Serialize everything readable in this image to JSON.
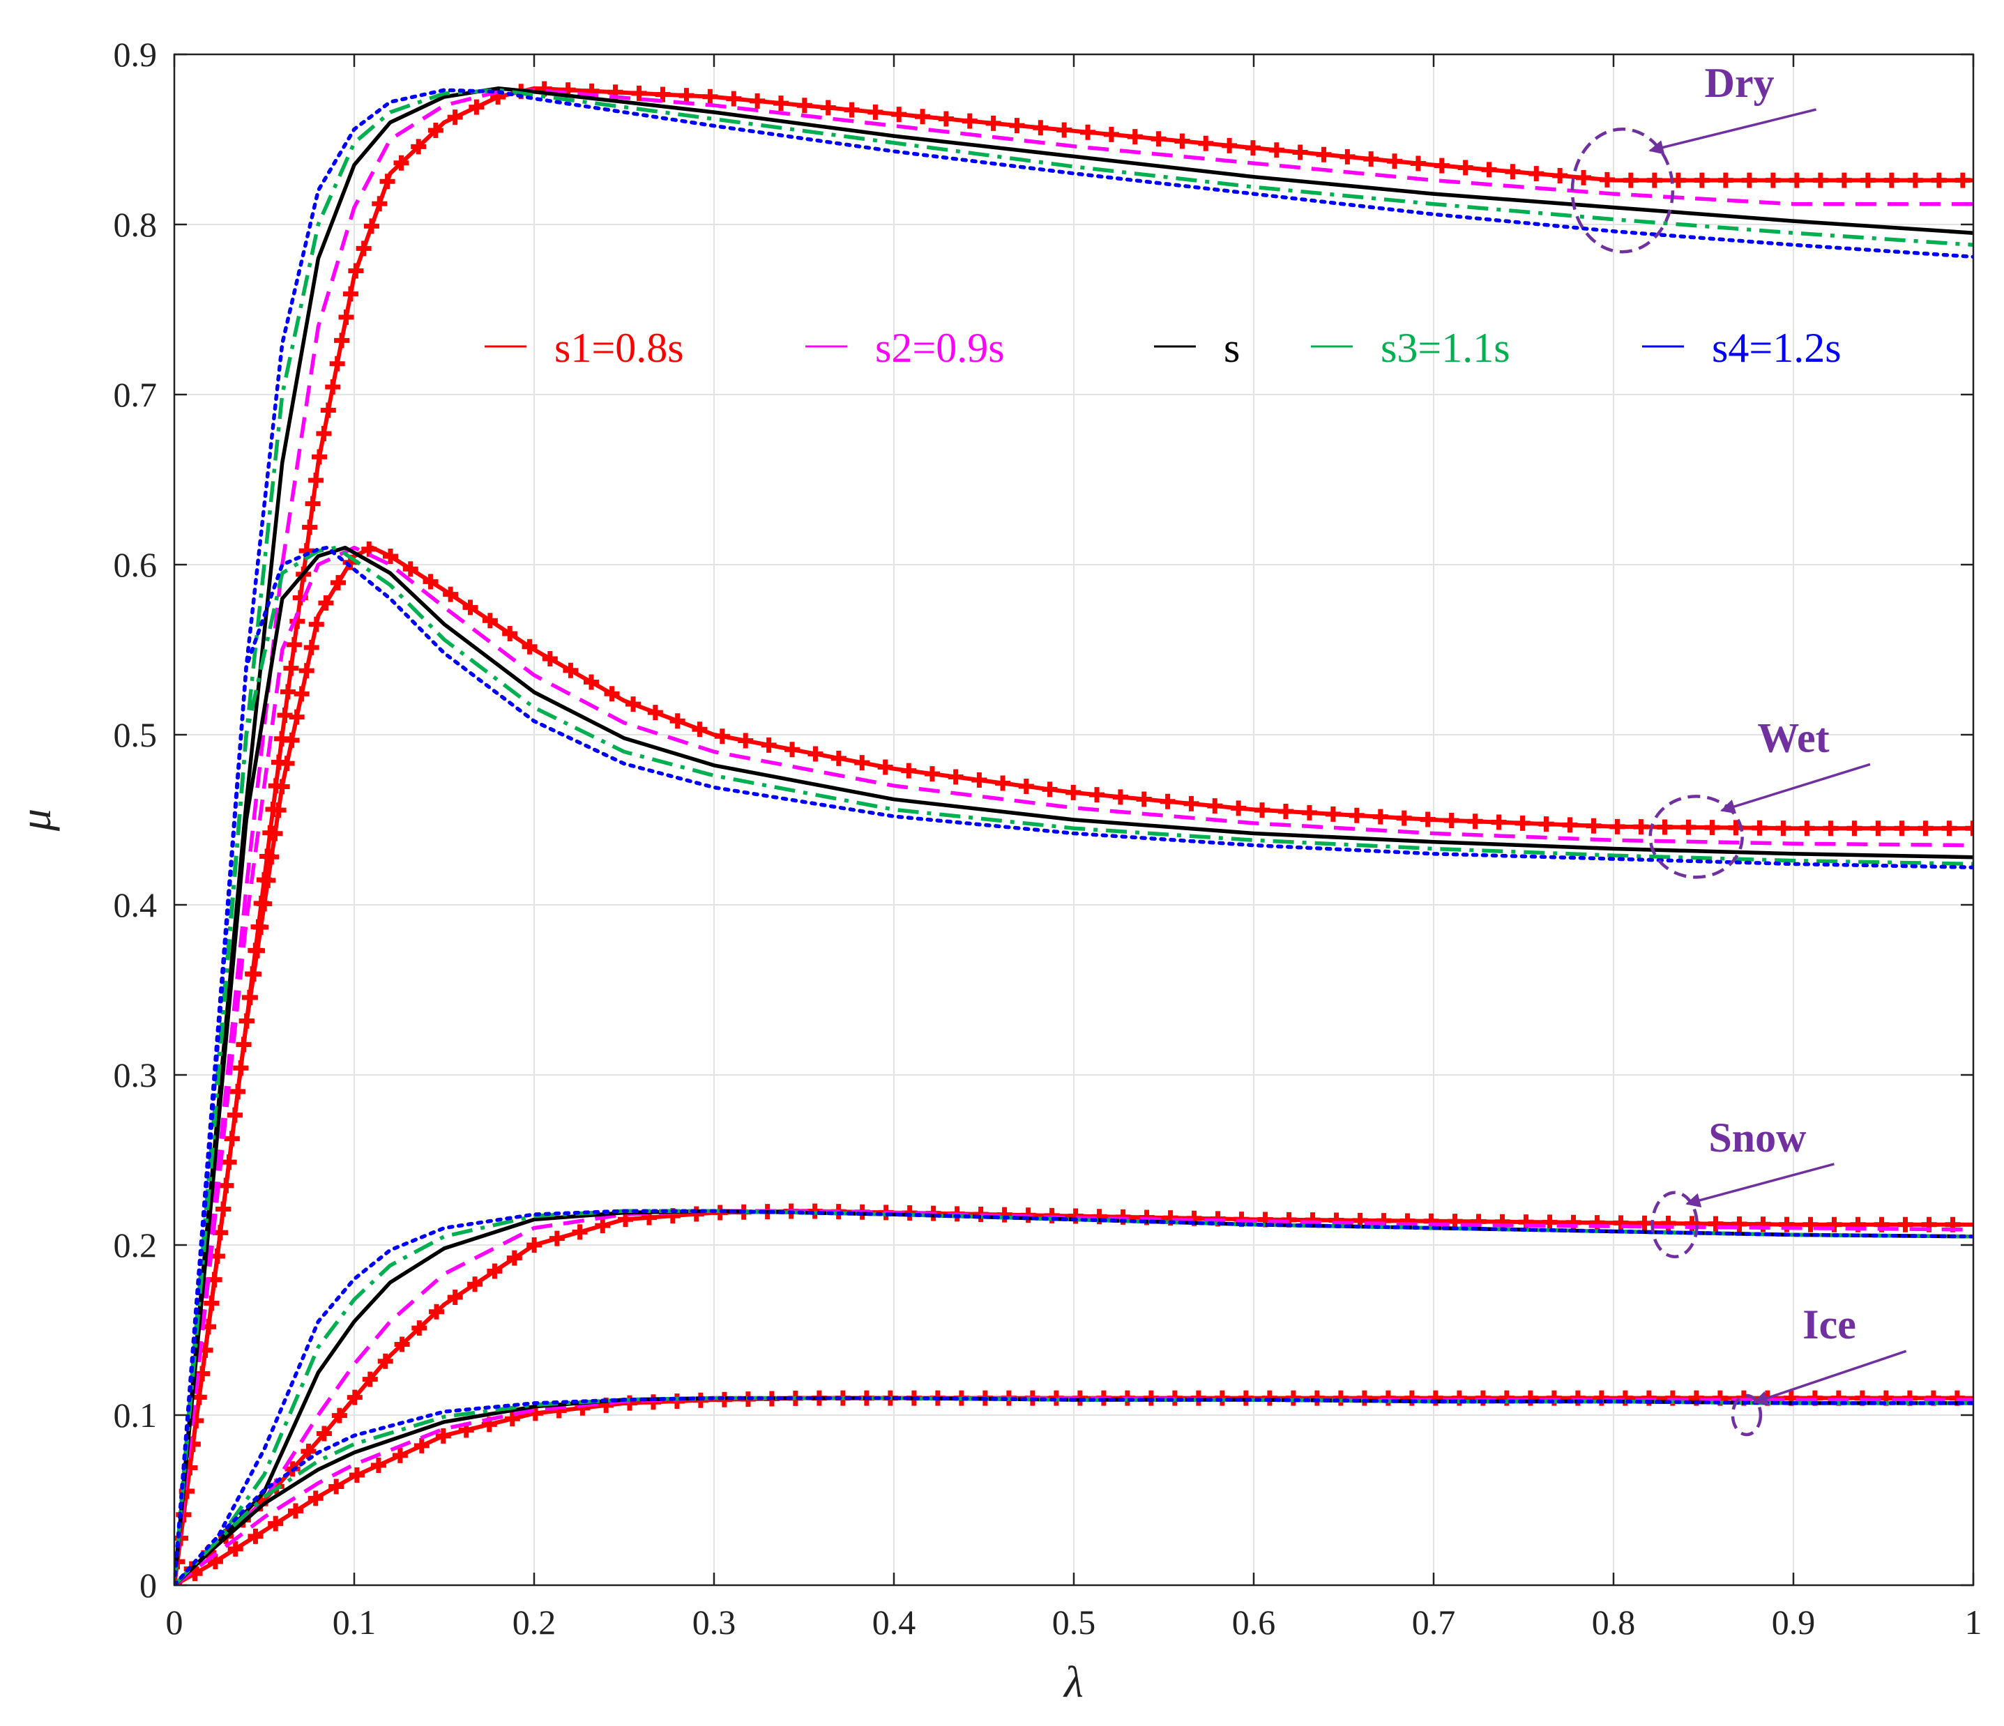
{
  "chart_data": {
    "type": "line",
    "title": "",
    "xlabel": "λ",
    "ylabel": "μ",
    "xlim": [
      0,
      1
    ],
    "ylim": [
      0,
      0.9
    ],
    "grid": true,
    "x_ticks": [
      "0",
      "0.1",
      "0.2",
      "0.3",
      "0.4",
      "0.5",
      "0.6",
      "0.7",
      "0.8",
      "0.9",
      "1"
    ],
    "y_ticks": [
      "0",
      "0.1",
      "0.2",
      "0.3",
      "0.4",
      "0.5",
      "0.6",
      "0.7",
      "0.8",
      "0.9"
    ],
    "x_tick_values": [
      0,
      0.1,
      0.2,
      0.3,
      0.4,
      0.5,
      0.6,
      0.7,
      0.8,
      0.9,
      1
    ],
    "y_tick_values": [
      0,
      0.1,
      0.2,
      0.3,
      0.4,
      0.5,
      0.6,
      0.7,
      0.8,
      0.9
    ],
    "legend_position": "upper-middle",
    "legend": [
      {
        "key": "s1",
        "label": "s1=0.8s",
        "color": "#ff0000",
        "style": "plus-markers"
      },
      {
        "key": "s2",
        "label": "s2=0.9s",
        "color": "#ff00ff",
        "style": "dashed"
      },
      {
        "key": "s",
        "label": "s",
        "color": "#000000",
        "style": "solid"
      },
      {
        "key": "s3",
        "label": "s3=1.1s",
        "color": "#00b050",
        "style": "dash-dot"
      },
      {
        "key": "s4",
        "label": "s4=1.2s",
        "color": "#0000ff",
        "style": "dotted"
      }
    ],
    "surfaces": [
      {
        "name": "Dry",
        "peak_x": [
          0.2,
          0.18,
          0.17,
          0.16,
          0.15
        ],
        "series": [
          {
            "key": "s1",
            "x": [
              0,
              0.02,
              0.04,
              0.06,
              0.08,
              0.1,
              0.12,
              0.15,
              0.18,
              0.2,
              0.3,
              0.4,
              0.5,
              0.6,
              0.7,
              0.8,
              0.9,
              1.0
            ],
            "values": [
              0,
              0.16,
              0.33,
              0.5,
              0.66,
              0.77,
              0.83,
              0.86,
              0.875,
              0.88,
              0.875,
              0.865,
              0.855,
              0.845,
              0.835,
              0.826,
              0.826,
              0.826
            ]
          },
          {
            "key": "s2",
            "x": [
              0,
              0.02,
              0.04,
              0.06,
              0.08,
              0.1,
              0.12,
              0.15,
              0.18,
              0.2,
              0.3,
              0.4,
              0.5,
              0.6,
              0.7,
              0.8,
              0.9,
              1.0
            ],
            "values": [
              0,
              0.2,
              0.41,
              0.6,
              0.74,
              0.81,
              0.85,
              0.87,
              0.878,
              0.879,
              0.87,
              0.858,
              0.846,
              0.836,
              0.826,
              0.818,
              0.812,
              0.812
            ]
          },
          {
            "key": "s",
            "x": [
              0,
              0.02,
              0.04,
              0.06,
              0.08,
              0.1,
              0.12,
              0.15,
              0.18,
              0.2,
              0.3,
              0.4,
              0.5,
              0.6,
              0.7,
              0.8,
              0.9,
              1.0
            ],
            "values": [
              0,
              0.23,
              0.46,
              0.66,
              0.78,
              0.835,
              0.86,
              0.875,
              0.88,
              0.878,
              0.866,
              0.852,
              0.84,
              0.828,
              0.818,
              0.81,
              0.802,
              0.795
            ]
          },
          {
            "key": "s3",
            "x": [
              0,
              0.02,
              0.04,
              0.06,
              0.08,
              0.1,
              0.12,
              0.15,
              0.18,
              0.2,
              0.3,
              0.4,
              0.5,
              0.6,
              0.7,
              0.8,
              0.9,
              1.0
            ],
            "values": [
              0,
              0.25,
              0.5,
              0.7,
              0.8,
              0.848,
              0.866,
              0.877,
              0.879,
              0.876,
              0.862,
              0.848,
              0.834,
              0.822,
              0.812,
              0.803,
              0.795,
              0.788
            ]
          },
          {
            "key": "s4",
            "x": [
              0,
              0.02,
              0.04,
              0.06,
              0.08,
              0.1,
              0.12,
              0.15,
              0.18,
              0.2,
              0.3,
              0.4,
              0.5,
              0.6,
              0.7,
              0.8,
              0.9,
              1.0
            ],
            "values": [
              0,
              0.27,
              0.54,
              0.73,
              0.82,
              0.856,
              0.872,
              0.879,
              0.878,
              0.874,
              0.858,
              0.843,
              0.83,
              0.818,
              0.806,
              0.796,
              0.788,
              0.781
            ]
          }
        ]
      },
      {
        "name": "Wet",
        "peak_x": [
          0.11,
          0.1,
          0.095,
          0.09,
          0.085
        ],
        "series": [
          {
            "key": "s1",
            "x": [
              0,
              0.02,
              0.04,
              0.06,
              0.08,
              0.1,
              0.11,
              0.12,
              0.15,
              0.2,
              0.25,
              0.3,
              0.4,
              0.5,
              0.6,
              0.7,
              0.8,
              0.9,
              1.0
            ],
            "values": [
              0,
              0.16,
              0.33,
              0.47,
              0.57,
              0.605,
              0.61,
              0.605,
              0.585,
              0.55,
              0.52,
              0.5,
              0.48,
              0.466,
              0.456,
              0.45,
              0.446,
              0.445,
              0.445
            ]
          },
          {
            "key": "s2",
            "x": [
              0,
              0.02,
              0.04,
              0.06,
              0.08,
              0.1,
              0.12,
              0.15,
              0.2,
              0.25,
              0.3,
              0.4,
              0.5,
              0.6,
              0.7,
              0.8,
              0.9,
              1.0
            ],
            "values": [
              0,
              0.19,
              0.39,
              0.55,
              0.6,
              0.61,
              0.6,
              0.575,
              0.535,
              0.507,
              0.49,
              0.47,
              0.457,
              0.448,
              0.442,
              0.438,
              0.436,
              0.435
            ]
          },
          {
            "key": "s",
            "x": [
              0,
              0.02,
              0.04,
              0.06,
              0.08,
              0.095,
              0.12,
              0.15,
              0.2,
              0.25,
              0.3,
              0.4,
              0.5,
              0.6,
              0.7,
              0.8,
              0.9,
              1.0
            ],
            "values": [
              0,
              0.22,
              0.45,
              0.58,
              0.605,
              0.61,
              0.595,
              0.565,
              0.525,
              0.498,
              0.482,
              0.462,
              0.45,
              0.442,
              0.437,
              0.433,
              0.43,
              0.428
            ]
          },
          {
            "key": "s3",
            "x": [
              0,
              0.02,
              0.04,
              0.06,
              0.08,
              0.09,
              0.12,
              0.15,
              0.2,
              0.25,
              0.3,
              0.4,
              0.5,
              0.6,
              0.7,
              0.8,
              0.9,
              1.0
            ],
            "values": [
              0,
              0.24,
              0.5,
              0.595,
              0.608,
              0.61,
              0.588,
              0.556,
              0.516,
              0.49,
              0.476,
              0.456,
              0.445,
              0.438,
              0.433,
              0.429,
              0.426,
              0.424
            ]
          },
          {
            "key": "s4",
            "x": [
              0,
              0.02,
              0.04,
              0.06,
              0.08,
              0.085,
              0.12,
              0.15,
              0.2,
              0.25,
              0.3,
              0.4,
              0.5,
              0.6,
              0.7,
              0.8,
              0.9,
              1.0
            ],
            "values": [
              0,
              0.26,
              0.54,
              0.6,
              0.609,
              0.61,
              0.58,
              0.548,
              0.508,
              0.483,
              0.469,
              0.452,
              0.442,
              0.435,
              0.43,
              0.427,
              0.424,
              0.422
            ]
          }
        ]
      },
      {
        "name": "Snow",
        "peak_x": [
          0.35,
          0.32,
          0.3,
          0.28,
          0.26
        ],
        "series": [
          {
            "key": "s1",
            "x": [
              0,
              0.02,
              0.05,
              0.08,
              0.1,
              0.12,
              0.15,
              0.2,
              0.25,
              0.3,
              0.35,
              0.4,
              0.5,
              0.6,
              0.7,
              0.8,
              0.9,
              1.0
            ],
            "values": [
              0,
              0.02,
              0.05,
              0.085,
              0.11,
              0.135,
              0.165,
              0.2,
              0.215,
              0.219,
              0.22,
              0.219,
              0.217,
              0.215,
              0.214,
              0.213,
              0.212,
              0.212
            ]
          },
          {
            "key": "s2",
            "x": [
              0,
              0.02,
              0.05,
              0.08,
              0.1,
              0.12,
              0.15,
              0.2,
              0.25,
              0.3,
              0.35,
              0.4,
              0.5,
              0.6,
              0.7,
              0.8,
              0.9,
              1.0
            ],
            "values": [
              0,
              0.02,
              0.05,
              0.1,
              0.13,
              0.155,
              0.183,
              0.21,
              0.218,
              0.22,
              0.22,
              0.219,
              0.216,
              0.214,
              0.212,
              0.211,
              0.21,
              0.209
            ]
          },
          {
            "key": "s",
            "x": [
              0,
              0.02,
              0.05,
              0.08,
              0.1,
              0.12,
              0.15,
              0.2,
              0.25,
              0.3,
              0.35,
              0.4,
              0.5,
              0.6,
              0.7,
              0.8,
              0.9,
              1.0
            ],
            "values": [
              0,
              0.02,
              0.055,
              0.125,
              0.155,
              0.178,
              0.198,
              0.215,
              0.219,
              0.22,
              0.219,
              0.218,
              0.215,
              0.212,
              0.21,
              0.208,
              0.206,
              0.205
            ]
          },
          {
            "key": "s3",
            "x": [
              0,
              0.02,
              0.05,
              0.08,
              0.1,
              0.12,
              0.15,
              0.2,
              0.25,
              0.3,
              0.35,
              0.4,
              0.5,
              0.6,
              0.7,
              0.8,
              0.9,
              1.0
            ],
            "values": [
              0,
              0.02,
              0.065,
              0.14,
              0.168,
              0.188,
              0.205,
              0.217,
              0.22,
              0.22,
              0.219,
              0.218,
              0.215,
              0.212,
              0.21,
              0.208,
              0.206,
              0.205
            ]
          },
          {
            "key": "s4",
            "x": [
              0,
              0.02,
              0.05,
              0.08,
              0.1,
              0.12,
              0.15,
              0.2,
              0.25,
              0.3,
              0.35,
              0.4,
              0.5,
              0.6,
              0.7,
              0.8,
              0.9,
              1.0
            ],
            "values": [
              0,
              0.02,
              0.08,
              0.155,
              0.18,
              0.197,
              0.21,
              0.218,
              0.22,
              0.22,
              0.219,
              0.218,
              0.215,
              0.212,
              0.21,
              0.208,
              0.206,
              0.205
            ]
          }
        ]
      },
      {
        "name": "Ice",
        "peak_x": [
          0.4,
          0.38,
          0.35,
          0.33,
          0.3
        ],
        "series": [
          {
            "key": "s1",
            "x": [
              0,
              0.02,
              0.05,
              0.08,
              0.1,
              0.15,
              0.2,
              0.25,
              0.3,
              0.35,
              0.4,
              0.5,
              0.6,
              0.7,
              0.8,
              0.9,
              1.0
            ],
            "values": [
              0,
              0.012,
              0.032,
              0.052,
              0.064,
              0.088,
              0.101,
              0.107,
              0.109,
              0.11,
              0.11,
              0.11,
              0.11,
              0.11,
              0.11,
              0.11,
              0.11
            ]
          },
          {
            "key": "s2",
            "x": [
              0,
              0.02,
              0.05,
              0.08,
              0.1,
              0.15,
              0.2,
              0.25,
              0.3,
              0.35,
              0.4,
              0.5,
              0.6,
              0.7,
              0.8,
              0.9,
              1.0
            ],
            "values": [
              0,
              0.016,
              0.04,
              0.06,
              0.071,
              0.092,
              0.103,
              0.108,
              0.11,
              0.11,
              0.11,
              0.11,
              0.109,
              0.109,
              0.109,
              0.109,
              0.109
            ]
          },
          {
            "key": "s",
            "x": [
              0,
              0.02,
              0.05,
              0.08,
              0.1,
              0.15,
              0.2,
              0.25,
              0.3,
              0.35,
              0.4,
              0.5,
              0.6,
              0.7,
              0.8,
              0.9,
              1.0
            ],
            "values": [
              0,
              0.02,
              0.048,
              0.068,
              0.078,
              0.096,
              0.105,
              0.109,
              0.11,
              0.11,
              0.11,
              0.109,
              0.109,
              0.108,
              0.108,
              0.107,
              0.107
            ]
          },
          {
            "key": "s3",
            "x": [
              0,
              0.02,
              0.05,
              0.08,
              0.1,
              0.15,
              0.2,
              0.25,
              0.3,
              0.35,
              0.4,
              0.5,
              0.6,
              0.7,
              0.8,
              0.9,
              1.0
            ],
            "values": [
              0,
              0.022,
              0.052,
              0.073,
              0.083,
              0.099,
              0.106,
              0.109,
              0.11,
              0.11,
              0.11,
              0.109,
              0.109,
              0.108,
              0.108,
              0.107,
              0.107
            ]
          },
          {
            "key": "s4",
            "x": [
              0,
              0.02,
              0.05,
              0.08,
              0.1,
              0.15,
              0.2,
              0.25,
              0.3,
              0.35,
              0.4,
              0.5,
              0.6,
              0.7,
              0.8,
              0.9,
              1.0
            ],
            "values": [
              0,
              0.024,
              0.056,
              0.078,
              0.088,
              0.102,
              0.107,
              0.109,
              0.11,
              0.11,
              0.11,
              0.109,
              0.109,
              0.108,
              0.108,
              0.107,
              0.107
            ]
          }
        ]
      }
    ],
    "annotations": [
      {
        "text": "Dry",
        "target_x": 0.805,
        "target_y": 0.82,
        "label_x": 0.87,
        "label_y": 0.875
      },
      {
        "text": "Wet",
        "target_x": 0.846,
        "target_y": 0.44,
        "label_x": 0.9,
        "label_y": 0.49
      },
      {
        "text": "Snow",
        "target_x": 0.834,
        "target_y": 0.212,
        "label_x": 0.88,
        "label_y": 0.255
      },
      {
        "text": "Ice",
        "target_x": 0.874,
        "target_y": 0.1,
        "label_x": 0.92,
        "label_y": 0.145
      }
    ]
  }
}
